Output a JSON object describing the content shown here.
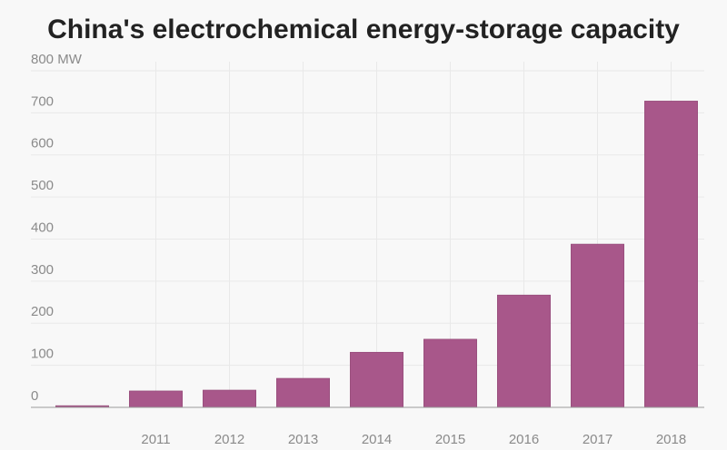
{
  "chart_data": {
    "type": "bar",
    "title": "China's electrochemical energy-storage capacity",
    "categories": [
      null,
      "2011",
      "2012",
      "2013",
      "2014",
      "2015",
      "2016",
      "2017",
      "2018"
    ],
    "values": [
      4,
      39,
      41,
      69,
      131,
      162,
      267,
      388,
      728
    ],
    "color": "#a8578a",
    "ylim": [
      0,
      800
    ],
    "yticks": [
      0,
      100,
      200,
      300,
      400,
      500,
      600,
      700,
      {
        "value": 800,
        "label": "800 MW"
      }
    ],
    "grid": true
  }
}
